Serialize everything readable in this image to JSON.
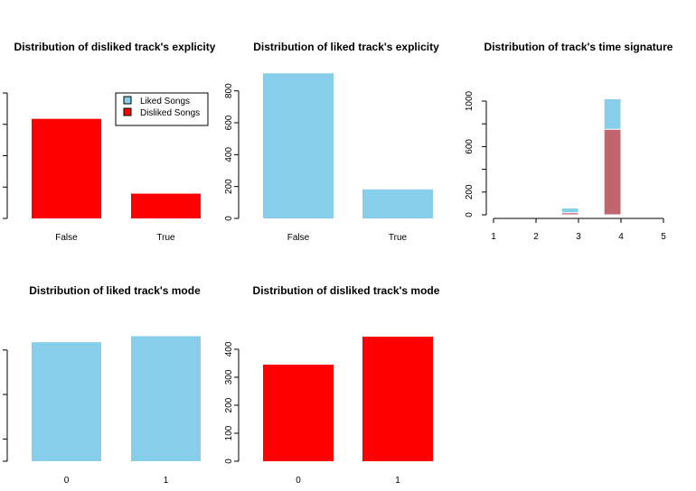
{
  "colors": {
    "liked": "#87CEEB",
    "disliked": "#FF0000",
    "overlap": "#C1666E"
  },
  "chart_data": [
    {
      "id": "disliked-explicity",
      "type": "bar",
      "title": "Distribution of disliked track's explicity",
      "categories": [
        "False",
        "True"
      ],
      "values": [
        635,
        158
      ],
      "ylim": [
        0,
        800
      ],
      "yticks": [
        "0",
        "200",
        "400",
        "600",
        "800"
      ],
      "color": "#FF0000",
      "legend": {
        "placement": "top-right",
        "entries": [
          {
            "label": "Liked Songs",
            "color": "#87CEEB"
          },
          {
            "label": "Disliked Songs",
            "color": "#FF0000"
          }
        ]
      }
    },
    {
      "id": "liked-explicity",
      "type": "bar",
      "title": "Distribution of liked track's explicity",
      "categories": [
        "False",
        "True"
      ],
      "values": [
        910,
        182
      ],
      "ylim": [
        0,
        900
      ],
      "yticks": [
        "0",
        "200",
        "400",
        "600",
        "800"
      ],
      "color": "#87CEEB"
    },
    {
      "id": "time-signature",
      "type": "bar",
      "title": "Distribution of track's time signature",
      "histogram": true,
      "xticks": [
        "1",
        "2",
        "3",
        "4",
        "5"
      ],
      "xlim": [
        1,
        5
      ],
      "ylim": [
        0,
        1050
      ],
      "yticks": [
        "0",
        "200",
        "600",
        "1000"
      ],
      "bins": [
        [
          2.6,
          3.0
        ],
        [
          3.6,
          4.0
        ],
        [
          4.6,
          5.0
        ]
      ],
      "series": [
        {
          "name": "Liked Songs",
          "values": [
            60,
            1020,
            0
          ],
          "color": "#87CEEB"
        },
        {
          "name": "Disliked Songs",
          "values": [
            18,
            752,
            5
          ],
          "color": "#C1666E"
        }
      ]
    },
    {
      "id": "liked-mode",
      "type": "bar",
      "title": "Distribution of liked track's mode",
      "categories": [
        "0",
        "1"
      ],
      "values": [
        535,
        562
      ],
      "ylim": [
        0,
        560
      ],
      "yticks": [
        "0",
        "100",
        "300",
        "500"
      ],
      "color": "#87CEEB"
    },
    {
      "id": "disliked-mode",
      "type": "bar",
      "title": "Distribution of disliked track's mode",
      "categories": [
        "0",
        "1"
      ],
      "values": [
        345,
        445
      ],
      "ylim": [
        0,
        445
      ],
      "yticks": [
        "0",
        "100",
        "200",
        "300",
        "400"
      ],
      "color": "#FF0000"
    }
  ]
}
